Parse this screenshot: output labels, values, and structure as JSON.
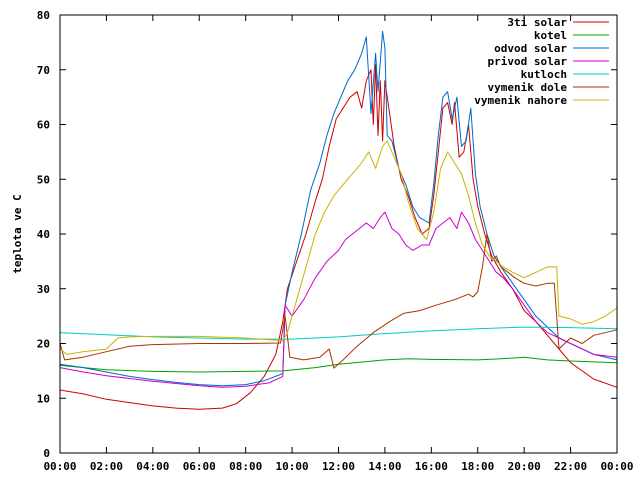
{
  "chart_data": {
    "type": "line",
    "title": "",
    "xlabel": "",
    "ylabel": "teplota ve C",
    "xlim": [
      0,
      24
    ],
    "ylim": [
      0,
      80
    ],
    "x_ticks": [
      {
        "value": 0,
        "label": "00:00"
      },
      {
        "value": 2,
        "label": "02:00"
      },
      {
        "value": 4,
        "label": "04:00"
      },
      {
        "value": 6,
        "label": "06:00"
      },
      {
        "value": 8,
        "label": "08:00"
      },
      {
        "value": 10,
        "label": "10:00"
      },
      {
        "value": 12,
        "label": "12:00"
      },
      {
        "value": 14,
        "label": "14:00"
      },
      {
        "value": 16,
        "label": "16:00"
      },
      {
        "value": 18,
        "label": "18:00"
      },
      {
        "value": 20,
        "label": "20:00"
      },
      {
        "value": 22,
        "label": "22:00"
      },
      {
        "value": 24,
        "label": "00:00"
      }
    ],
    "y_ticks": [
      0,
      10,
      20,
      30,
      40,
      50,
      60,
      70,
      80
    ],
    "grid": false,
    "legend_position": "top-right",
    "series": [
      {
        "name": "3ti solar",
        "color": "#cc0000",
        "points": [
          [
            0,
            11.5
          ],
          [
            1,
            10.8
          ],
          [
            2,
            9.8
          ],
          [
            3,
            9.2
          ],
          [
            4,
            8.6
          ],
          [
            5,
            8.2
          ],
          [
            6,
            8.0
          ],
          [
            7,
            8.2
          ],
          [
            7.6,
            9.0
          ],
          [
            8.2,
            11.0
          ],
          [
            8.8,
            14.0
          ],
          [
            9.3,
            18.0
          ],
          [
            9.6,
            24.0
          ],
          [
            9.8,
            30.0
          ],
          [
            10.2,
            35.0
          ],
          [
            10.6,
            40.0
          ],
          [
            11.0,
            46.0
          ],
          [
            11.3,
            50.0
          ],
          [
            11.6,
            56.0
          ],
          [
            11.9,
            61.0
          ],
          [
            12.2,
            63.0
          ],
          [
            12.5,
            65.0
          ],
          [
            12.8,
            66.0
          ],
          [
            13.0,
            63.0
          ],
          [
            13.2,
            68.0
          ],
          [
            13.4,
            70.0
          ],
          [
            13.5,
            60.0
          ],
          [
            13.6,
            71.0
          ],
          [
            13.7,
            58.0
          ],
          [
            13.8,
            68.0
          ],
          [
            13.9,
            57.0
          ],
          [
            14.0,
            68.0
          ],
          [
            14.2,
            62.0
          ],
          [
            14.4,
            56.0
          ],
          [
            14.7,
            50.0
          ],
          [
            15.0,
            47.0
          ],
          [
            15.3,
            43.0
          ],
          [
            15.6,
            40.0
          ],
          [
            15.9,
            41.0
          ],
          [
            16.1,
            47.0
          ],
          [
            16.3,
            55.0
          ],
          [
            16.5,
            63.0
          ],
          [
            16.7,
            64.0
          ],
          [
            16.9,
            60.0
          ],
          [
            17.0,
            64.0
          ],
          [
            17.2,
            54.0
          ],
          [
            17.4,
            55.0
          ],
          [
            17.6,
            60.0
          ],
          [
            17.8,
            50.0
          ],
          [
            18.0,
            45.0
          ],
          [
            18.3,
            40.0
          ],
          [
            18.6,
            36.0
          ],
          [
            19.0,
            33.0
          ],
          [
            19.5,
            30.0
          ],
          [
            20.0,
            26.0
          ],
          [
            20.5,
            24.0
          ],
          [
            21.0,
            21.5
          ],
          [
            21.5,
            19.0
          ],
          [
            22.0,
            16.5
          ],
          [
            22.5,
            15.0
          ],
          [
            23.0,
            13.5
          ],
          [
            24,
            12.0
          ]
        ]
      },
      {
        "name": "kotel",
        "color": "#00a000",
        "points": [
          [
            0,
            16.0
          ],
          [
            2,
            15.2
          ],
          [
            4,
            14.9
          ],
          [
            6,
            14.8
          ],
          [
            8,
            14.9
          ],
          [
            9.6,
            15.0
          ],
          [
            11,
            15.6
          ],
          [
            12,
            16.2
          ],
          [
            14,
            17.0
          ],
          [
            15,
            17.2
          ],
          [
            16,
            17.1
          ],
          [
            18,
            17.0
          ],
          [
            19,
            17.2
          ],
          [
            20,
            17.5
          ],
          [
            21,
            17.0
          ],
          [
            22,
            16.8
          ],
          [
            24,
            16.5
          ]
        ]
      },
      {
        "name": "odvod solar",
        "color": "#0066cc",
        "points": [
          [
            0,
            16.2
          ],
          [
            1,
            15.6
          ],
          [
            2,
            14.8
          ],
          [
            3,
            14.0
          ],
          [
            4,
            13.4
          ],
          [
            5,
            12.9
          ],
          [
            6,
            12.5
          ],
          [
            7,
            12.3
          ],
          [
            8,
            12.5
          ],
          [
            8.8,
            13.2
          ],
          [
            9.6,
            14.5
          ],
          [
            9.7,
            27.0
          ],
          [
            10.0,
            33.0
          ],
          [
            10.4,
            40.0
          ],
          [
            10.8,
            48.0
          ],
          [
            11.2,
            53.0
          ],
          [
            11.5,
            58.0
          ],
          [
            11.8,
            62.0
          ],
          [
            12.1,
            65.0
          ],
          [
            12.4,
            68.0
          ],
          [
            12.7,
            70.0
          ],
          [
            13.0,
            73.0
          ],
          [
            13.2,
            76.0
          ],
          [
            13.4,
            62.0
          ],
          [
            13.6,
            73.0
          ],
          [
            13.7,
            66.0
          ],
          [
            13.9,
            77.0
          ],
          [
            14.0,
            74.0
          ],
          [
            14.1,
            58.0
          ],
          [
            14.3,
            57.0
          ],
          [
            14.6,
            52.0
          ],
          [
            14.9,
            49.0
          ],
          [
            15.2,
            45.0
          ],
          [
            15.5,
            43.0
          ],
          [
            15.9,
            42.0
          ],
          [
            16.1,
            49.0
          ],
          [
            16.3,
            58.0
          ],
          [
            16.5,
            65.0
          ],
          [
            16.7,
            66.0
          ],
          [
            16.9,
            61.0
          ],
          [
            17.1,
            65.0
          ],
          [
            17.3,
            56.0
          ],
          [
            17.5,
            57.0
          ],
          [
            17.7,
            63.0
          ],
          [
            17.9,
            51.0
          ],
          [
            18.1,
            45.0
          ],
          [
            18.4,
            40.0
          ],
          [
            18.7,
            36.0
          ],
          [
            19.0,
            34.0
          ],
          [
            19.5,
            31.0
          ],
          [
            20.0,
            28.0
          ],
          [
            20.5,
            25.0
          ],
          [
            21.0,
            23.0
          ],
          [
            21.5,
            21.0
          ],
          [
            22.0,
            20.0
          ],
          [
            23.0,
            18.0
          ],
          [
            24,
            17.0
          ]
        ]
      },
      {
        "name": "privod solar",
        "color": "#cc00cc",
        "points": [
          [
            0,
            15.6
          ],
          [
            1,
            14.8
          ],
          [
            2,
            14.1
          ],
          [
            3,
            13.6
          ],
          [
            4,
            13.1
          ],
          [
            5,
            12.7
          ],
          [
            6,
            12.3
          ],
          [
            7,
            12.0
          ],
          [
            8,
            12.2
          ],
          [
            9,
            12.8
          ],
          [
            9.6,
            14.0
          ],
          [
            9.7,
            27.0
          ],
          [
            10.0,
            25.0
          ],
          [
            10.5,
            28.0
          ],
          [
            11.0,
            32.0
          ],
          [
            11.5,
            35.0
          ],
          [
            12.0,
            37.0
          ],
          [
            12.3,
            39.0
          ],
          [
            12.6,
            40.0
          ],
          [
            12.9,
            41.0
          ],
          [
            13.2,
            42.0
          ],
          [
            13.5,
            41.0
          ],
          [
            13.8,
            43.0
          ],
          [
            14.0,
            44.0
          ],
          [
            14.3,
            41.0
          ],
          [
            14.6,
            40.0
          ],
          [
            14.9,
            38.0
          ],
          [
            15.2,
            37.0
          ],
          [
            15.6,
            38.0
          ],
          [
            15.9,
            38.0
          ],
          [
            16.2,
            41.0
          ],
          [
            16.5,
            42.0
          ],
          [
            16.8,
            43.0
          ],
          [
            17.1,
            41.0
          ],
          [
            17.3,
            44.0
          ],
          [
            17.6,
            42.0
          ],
          [
            17.9,
            39.0
          ],
          [
            18.2,
            37.0
          ],
          [
            18.5,
            35.0
          ],
          [
            18.8,
            33.0
          ],
          [
            19.1,
            32.0
          ],
          [
            19.5,
            30.0
          ],
          [
            20.0,
            27.0
          ],
          [
            20.5,
            24.0
          ],
          [
            21.0,
            22.0
          ],
          [
            21.5,
            21.0
          ],
          [
            22.0,
            20.0
          ],
          [
            23.0,
            18.0
          ],
          [
            24,
            17.5
          ]
        ]
      },
      {
        "name": "kutloch",
        "color": "#00cccc",
        "points": [
          [
            0,
            22.0
          ],
          [
            2,
            21.6
          ],
          [
            4,
            21.2
          ],
          [
            6,
            21.0
          ],
          [
            8,
            20.8
          ],
          [
            10,
            20.8
          ],
          [
            12,
            21.2
          ],
          [
            14,
            21.8
          ],
          [
            16,
            22.3
          ],
          [
            18,
            22.7
          ],
          [
            20,
            23.0
          ],
          [
            22,
            22.9
          ],
          [
            24,
            22.7
          ]
        ]
      },
      {
        "name": "vymenik dole",
        "color": "#a83200",
        "points": [
          [
            0,
            20.0
          ],
          [
            0.2,
            17.0
          ],
          [
            1,
            17.5
          ],
          [
            2,
            18.5
          ],
          [
            3,
            19.5
          ],
          [
            4,
            19.8
          ],
          [
            6,
            20.0
          ],
          [
            8,
            20.0
          ],
          [
            9.5,
            20.1
          ],
          [
            9.7,
            25.0
          ],
          [
            9.9,
            17.5
          ],
          [
            10.5,
            17.0
          ],
          [
            11.2,
            17.5
          ],
          [
            11.6,
            19.0
          ],
          [
            11.8,
            15.5
          ],
          [
            12.2,
            17.0
          ],
          [
            12.8,
            19.5
          ],
          [
            13.5,
            22.0
          ],
          [
            14.2,
            24.0
          ],
          [
            14.8,
            25.5
          ],
          [
            15.5,
            26.0
          ],
          [
            16.2,
            27.0
          ],
          [
            17.0,
            28.0
          ],
          [
            17.6,
            29.0
          ],
          [
            17.8,
            28.5
          ],
          [
            18.0,
            29.5
          ],
          [
            18.2,
            34.0
          ],
          [
            18.4,
            40.0
          ],
          [
            18.6,
            35.0
          ],
          [
            18.8,
            36.0
          ],
          [
            19.0,
            34.0
          ],
          [
            19.3,
            33.0
          ],
          [
            19.6,
            32.0
          ],
          [
            20.0,
            31.0
          ],
          [
            20.5,
            30.5
          ],
          [
            21.0,
            31.0
          ],
          [
            21.3,
            31.0
          ],
          [
            21.5,
            19.0
          ],
          [
            22.0,
            21.0
          ],
          [
            22.5,
            20.0
          ],
          [
            23.0,
            21.5
          ],
          [
            24,
            22.5
          ]
        ]
      },
      {
        "name": "vymenik nahore",
        "color": "#c8b400",
        "points": [
          [
            0,
            19.0
          ],
          [
            0.3,
            18.0
          ],
          [
            1,
            18.5
          ],
          [
            2,
            19.0
          ],
          [
            2.5,
            21.0
          ],
          [
            3,
            21.2
          ],
          [
            4,
            21.3
          ],
          [
            6,
            21.3
          ],
          [
            8,
            21.0
          ],
          [
            9.6,
            20.5
          ],
          [
            9.8,
            22.0
          ],
          [
            10.2,
            28.0
          ],
          [
            10.6,
            34.0
          ],
          [
            11.0,
            40.0
          ],
          [
            11.4,
            44.0
          ],
          [
            11.8,
            47.0
          ],
          [
            12.2,
            49.0
          ],
          [
            12.6,
            51.0
          ],
          [
            13.0,
            53.0
          ],
          [
            13.3,
            55.0
          ],
          [
            13.6,
            52.0
          ],
          [
            13.9,
            56.0
          ],
          [
            14.1,
            57.0
          ],
          [
            14.4,
            54.0
          ],
          [
            14.7,
            51.0
          ],
          [
            15.0,
            46.0
          ],
          [
            15.4,
            41.0
          ],
          [
            15.8,
            39.0
          ],
          [
            16.1,
            44.0
          ],
          [
            16.4,
            52.0
          ],
          [
            16.7,
            55.0
          ],
          [
            17.0,
            53.0
          ],
          [
            17.3,
            51.0
          ],
          [
            17.6,
            47.0
          ],
          [
            17.9,
            42.0
          ],
          [
            18.2,
            38.0
          ],
          [
            18.5,
            36.0
          ],
          [
            18.8,
            35.0
          ],
          [
            19.1,
            34.0
          ],
          [
            19.5,
            33.0
          ],
          [
            20.0,
            32.0
          ],
          [
            20.5,
            33.0
          ],
          [
            21.0,
            34.0
          ],
          [
            21.4,
            34.0
          ],
          [
            21.5,
            25.0
          ],
          [
            22.0,
            24.5
          ],
          [
            22.5,
            23.5
          ],
          [
            23.0,
            24.0
          ],
          [
            23.5,
            25.0
          ],
          [
            24,
            26.5
          ]
        ]
      }
    ]
  }
}
